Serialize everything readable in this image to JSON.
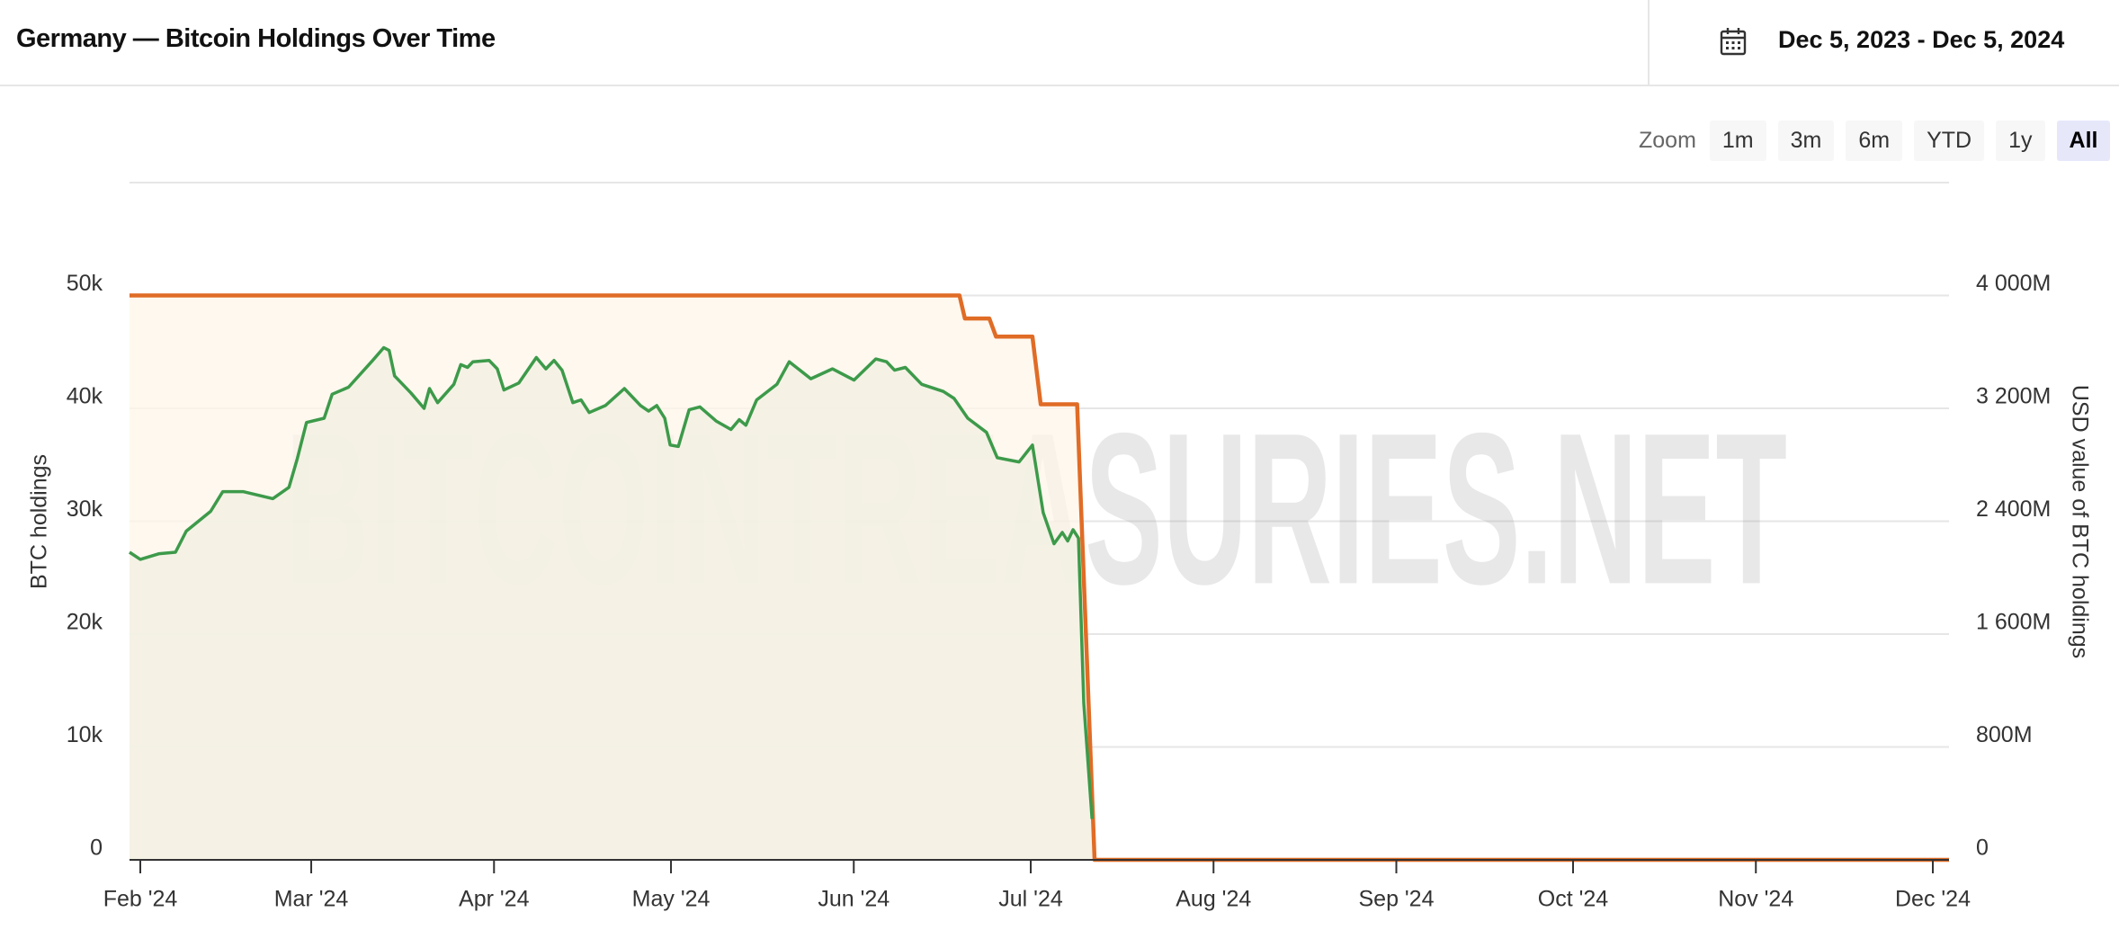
{
  "header": {
    "title": "Germany — Bitcoin Holdings Over Time",
    "date_range": "Dec 5, 2023 - Dec 5, 2024"
  },
  "zoom": {
    "label": "Zoom",
    "buttons": [
      "1m",
      "3m",
      "6m",
      "YTD",
      "1y",
      "All"
    ],
    "active": "All"
  },
  "chart_data": {
    "type": "line",
    "watermark": "BITCOINTREASURIES.NET",
    "y_label": "BTC holdings",
    "y2_label": "USD value of BTC holdings",
    "xlim": [
      2024.0797,
      2024.9228
    ],
    "xticks": [
      {
        "value": 2024.0847,
        "label": "Feb '24"
      },
      {
        "value": 2024.1639,
        "label": "Mar '24"
      },
      {
        "value": 2024.2486,
        "label": "Apr '24"
      },
      {
        "value": 2024.3306,
        "label": "May '24"
      },
      {
        "value": 2024.4153,
        "label": "Jun '24"
      },
      {
        "value": 2024.4973,
        "label": "Jul '24"
      },
      {
        "value": 2024.582,
        "label": "Aug '24"
      },
      {
        "value": 2024.6667,
        "label": "Sep '24"
      },
      {
        "value": 2024.7486,
        "label": "Oct '24"
      },
      {
        "value": 2024.8333,
        "label": "Nov '24"
      },
      {
        "value": 2024.9153,
        "label": "Dec '24"
      }
    ],
    "ylim": [
      0,
      60000
    ],
    "yticks": [
      0,
      {
        "value": 10000,
        "label": "10k"
      },
      {
        "value": 20000,
        "label": "20k"
      },
      {
        "value": 30000,
        "label": "30k"
      },
      {
        "value": 40000,
        "label": "40k"
      },
      {
        "value": 50000,
        "label": "50k"
      }
    ],
    "y2lim": [
      0,
      4800000000
    ],
    "y2ticks": [
      0,
      {
        "value": 800000000,
        "label": "800M"
      },
      {
        "value": 1600000000,
        "label": "1 600M"
      },
      {
        "value": 2400000000,
        "label": "2 400M"
      },
      {
        "value": 3200000000,
        "label": "3 200M"
      },
      {
        "value": 4000000000,
        "label": "4 000M"
      }
    ],
    "grid": true,
    "series": [
      {
        "axis": "y",
        "color": "#e06c26",
        "fill": "#fdf5ea",
        "x": [
          2024.0797,
          2024.4643,
          2024.4668,
          2024.4781,
          2024.4812,
          2024.4981,
          2024.5019,
          2024.5188,
          2024.5269,
          2024.9228
        ],
        "values": [
          50000,
          50000,
          47960,
          47960,
          46360,
          46360,
          40360,
          40360,
          0,
          0
        ]
      },
      {
        "axis": "y2",
        "color": "#3d9a4a",
        "fill": "#f1f0e1",
        "x": [
          2024.0797,
          2024.0847,
          2024.0935,
          2024.101,
          2024.106,
          2024.1173,
          2024.1229,
          2024.1323,
          2024.1461,
          2024.1536,
          2024.1574,
          2024.1617,
          2024.1699,
          2024.1736,
          2024.1812,
          2024.1924,
          2024.1975,
          2024.2,
          2024.2025,
          2024.21,
          2024.2162,
          2024.2187,
          2024.2225,
          2024.23,
          2024.2332,
          2024.2363,
          2024.2388,
          2024.2463,
          2024.2501,
          2024.2532,
          2024.2601,
          2024.2682,
          2024.2726,
          2024.2764,
          2024.2801,
          2024.2851,
          2024.2889,
          2024.2927,
          2024.3002,
          2024.309,
          2024.3165,
          2024.3202,
          2024.324,
          2024.3277,
          2024.3302,
          2024.334,
          2024.339,
          2024.344,
          2024.3515,
          2024.3584,
          2024.3622,
          2024.3653,
          2024.3703,
          2024.3797,
          2024.3854,
          2024.3954,
          2024.4054,
          2024.4154,
          2024.4255,
          2024.4305,
          2024.4342,
          2024.4392,
          2024.4468,
          2024.4568,
          2024.4618,
          2024.4681,
          2024.4768,
          2024.4818,
          2024.4919,
          2024.4981,
          2024.5031,
          2024.5081,
          2024.5119,
          2024.5144,
          2024.5169,
          2024.5194,
          2024.5219,
          2024.5257
        ],
        "values": [
          2180000000,
          2130000000,
          2170000000,
          2180000000,
          2330000000,
          2470000000,
          2610000000,
          2610000000,
          2560000000,
          2640000000,
          2840000000,
          3100000000,
          3130000000,
          3300000000,
          3350000000,
          3540000000,
          3630000000,
          3610000000,
          3430000000,
          3310000000,
          3200000000,
          3340000000,
          3240000000,
          3370000000,
          3510000000,
          3490000000,
          3530000000,
          3540000000,
          3480000000,
          3330000000,
          3380000000,
          3560000000,
          3480000000,
          3540000000,
          3470000000,
          3240000000,
          3260000000,
          3170000000,
          3220000000,
          3340000000,
          3220000000,
          3180000000,
          3220000000,
          3130000000,
          2940000000,
          2930000000,
          3190000000,
          3210000000,
          3110000000,
          3050000000,
          3120000000,
          3080000000,
          3260000000,
          3370000000,
          3530000000,
          3410000000,
          3480000000,
          3400000000,
          3550000000,
          3530000000,
          3470000000,
          3490000000,
          3370000000,
          3320000000,
          3270000000,
          3130000000,
          3030000000,
          2850000000,
          2820000000,
          2940000000,
          2460000000,
          2240000000,
          2320000000,
          2260000000,
          2340000000,
          2280000000,
          1110000000,
          290000000
        ]
      }
    ]
  }
}
